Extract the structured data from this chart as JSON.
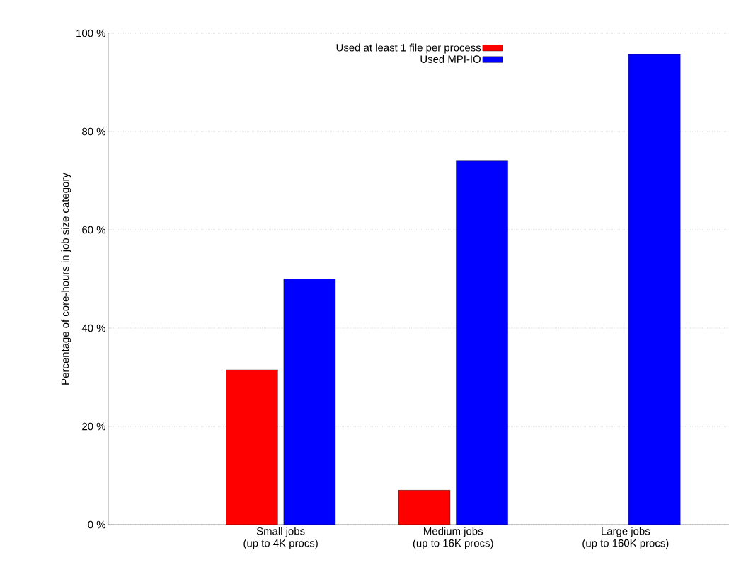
{
  "chart_data": {
    "type": "bar",
    "ylabel": "Percentage of core-hours in job size category",
    "categories": [
      "Small jobs\n(up to 4K procs)",
      "Medium jobs\n(up to 16K procs)",
      "Large jobs\n(up to 160K procs)"
    ],
    "series": [
      {
        "name": "Used at least 1 file per process",
        "color": "#ff0000",
        "values": [
          31.5,
          7,
          null
        ]
      },
      {
        "name": "Used MPI-IO",
        "color": "#0000ff",
        "values": [
          50,
          74,
          95.7
        ]
      }
    ],
    "ylim": [
      0,
      100
    ],
    "yticks": [
      {
        "value": 0,
        "label": "0 %"
      },
      {
        "value": 20,
        "label": "20 %"
      },
      {
        "value": 40,
        "label": "40 %"
      },
      {
        "value": 60,
        "label": "60 %"
      },
      {
        "value": 80,
        "label": "80 %"
      },
      {
        "value": 100,
        "label": "100 %"
      }
    ],
    "grid": "y",
    "legend": "top"
  }
}
